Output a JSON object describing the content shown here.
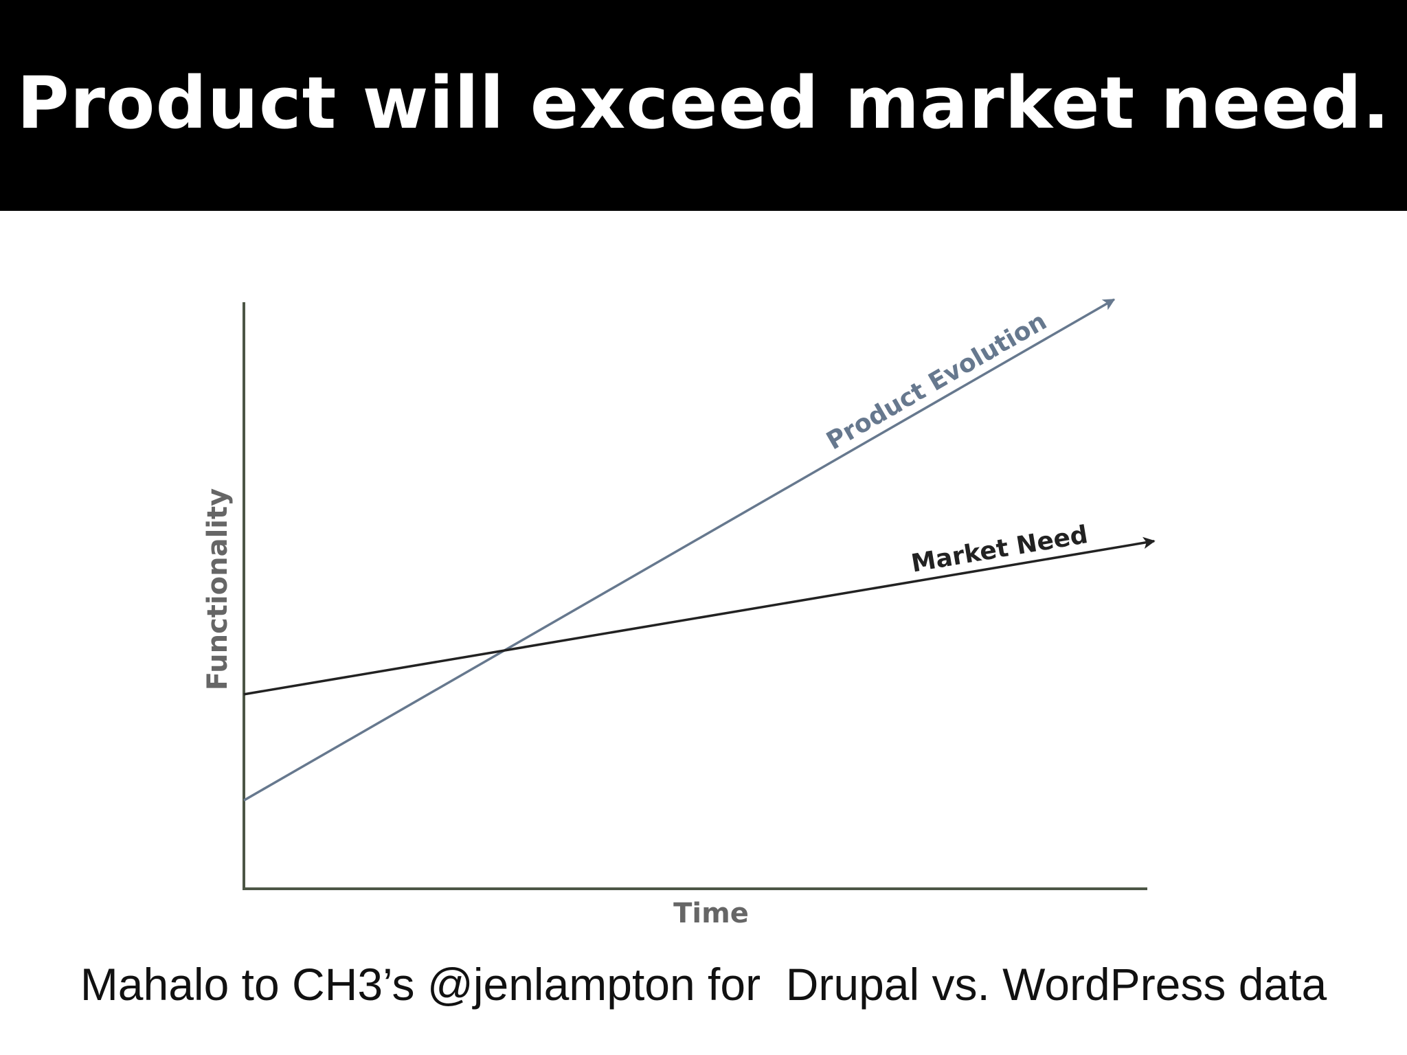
{
  "slide": {
    "title": "Product will exceed market need.",
    "caption": "Mahalo to CH3’s @jenlampton for  Drupal vs. WordPress data"
  },
  "chart_data": {
    "type": "line",
    "title": "",
    "xlabel": "Time",
    "ylabel": "Functionality",
    "grid": false,
    "legend": "none (series labelled inline along lines)",
    "xlim": [
      0,
      100
    ],
    "ylim": [
      0,
      100
    ],
    "series": [
      {
        "name": "Product Evolution",
        "x": [
          0,
          95.6
        ],
        "y": [
          15,
          100
        ],
        "color": "#66788e",
        "arrow_end": true
      },
      {
        "name": "Market Need",
        "x": [
          0,
          100
        ],
        "y": [
          33,
          59
        ],
        "color": "#222222",
        "arrow_end": true
      }
    ]
  }
}
